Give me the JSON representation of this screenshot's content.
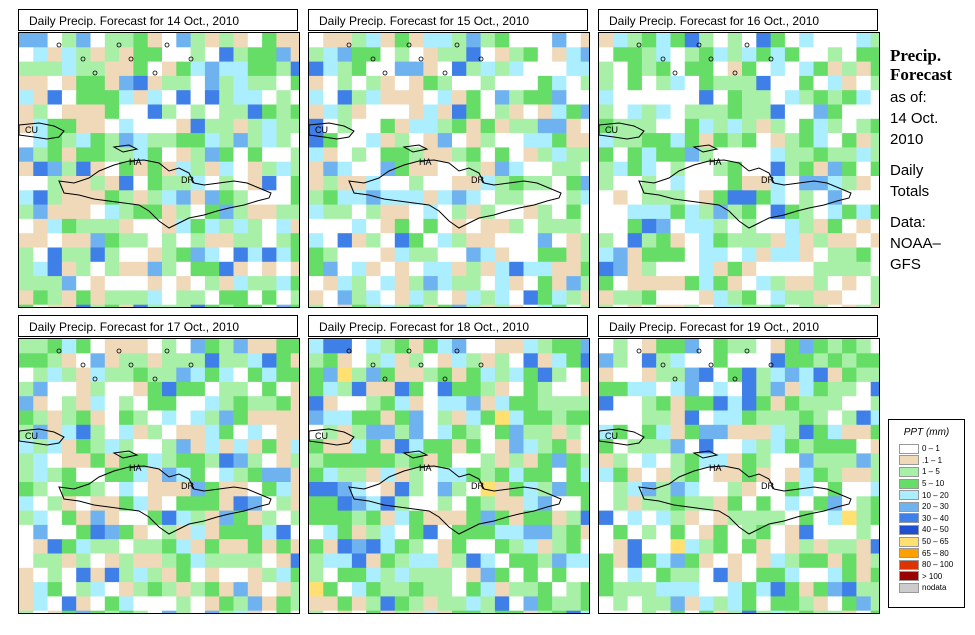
{
  "panels": [
    {
      "title": "Daily Precip. Forecast for  14 Oct., 2010"
    },
    {
      "title": "Daily Precip. Forecast for  15 Oct., 2010"
    },
    {
      "title": "Daily Precip. Forecast for  16 Oct., 2010"
    },
    {
      "title": "Daily Precip. Forecast for  17 Oct., 2010"
    },
    {
      "title": "Daily Precip. Forecast for  18 Oct., 2010"
    },
    {
      "title": "Daily Precip. Forecast for  19 Oct., 2010"
    }
  ],
  "map_labels": {
    "cuba": "CU",
    "haiti": "HA",
    "dominican_republic": "DR"
  },
  "sidebar": {
    "title_line1": "Precip.",
    "title_line2": "Forecast",
    "asof_line1": "as of:",
    "asof_line2": "14 Oct.",
    "asof_line3": "2010",
    "type_line1": "Daily",
    "type_line2": "Totals",
    "source_line1": "Data:",
    "source_line2": "NOAA–",
    "source_line3": "GFS"
  },
  "legend": {
    "title": "PPT (mm)",
    "items": [
      {
        "label": "0 – 1",
        "color": "#ffffff"
      },
      {
        "label": ".1 – 1",
        "color": "#f0d9b8"
      },
      {
        "label": "1 – 5",
        "color": "#a8f0a8"
      },
      {
        "label": "5 – 10",
        "color": "#66dd66"
      },
      {
        "label": "10 – 20",
        "color": "#aaeeff"
      },
      {
        "label": "20 – 30",
        "color": "#6fb2f0"
      },
      {
        "label": "30 – 40",
        "color": "#3f7fe8"
      },
      {
        "label": "40 – 50",
        "color": "#1f4fd0"
      },
      {
        "label": "50 – 65",
        "color": "#ffe070"
      },
      {
        "label": "65 – 80",
        "color": "#ffa000"
      },
      {
        "label": "80 – 100",
        "color": "#dd3300"
      },
      {
        "label": "> 100",
        "color": "#990000"
      },
      {
        "label": "nodata",
        "color": "#cccccc"
      }
    ]
  }
}
